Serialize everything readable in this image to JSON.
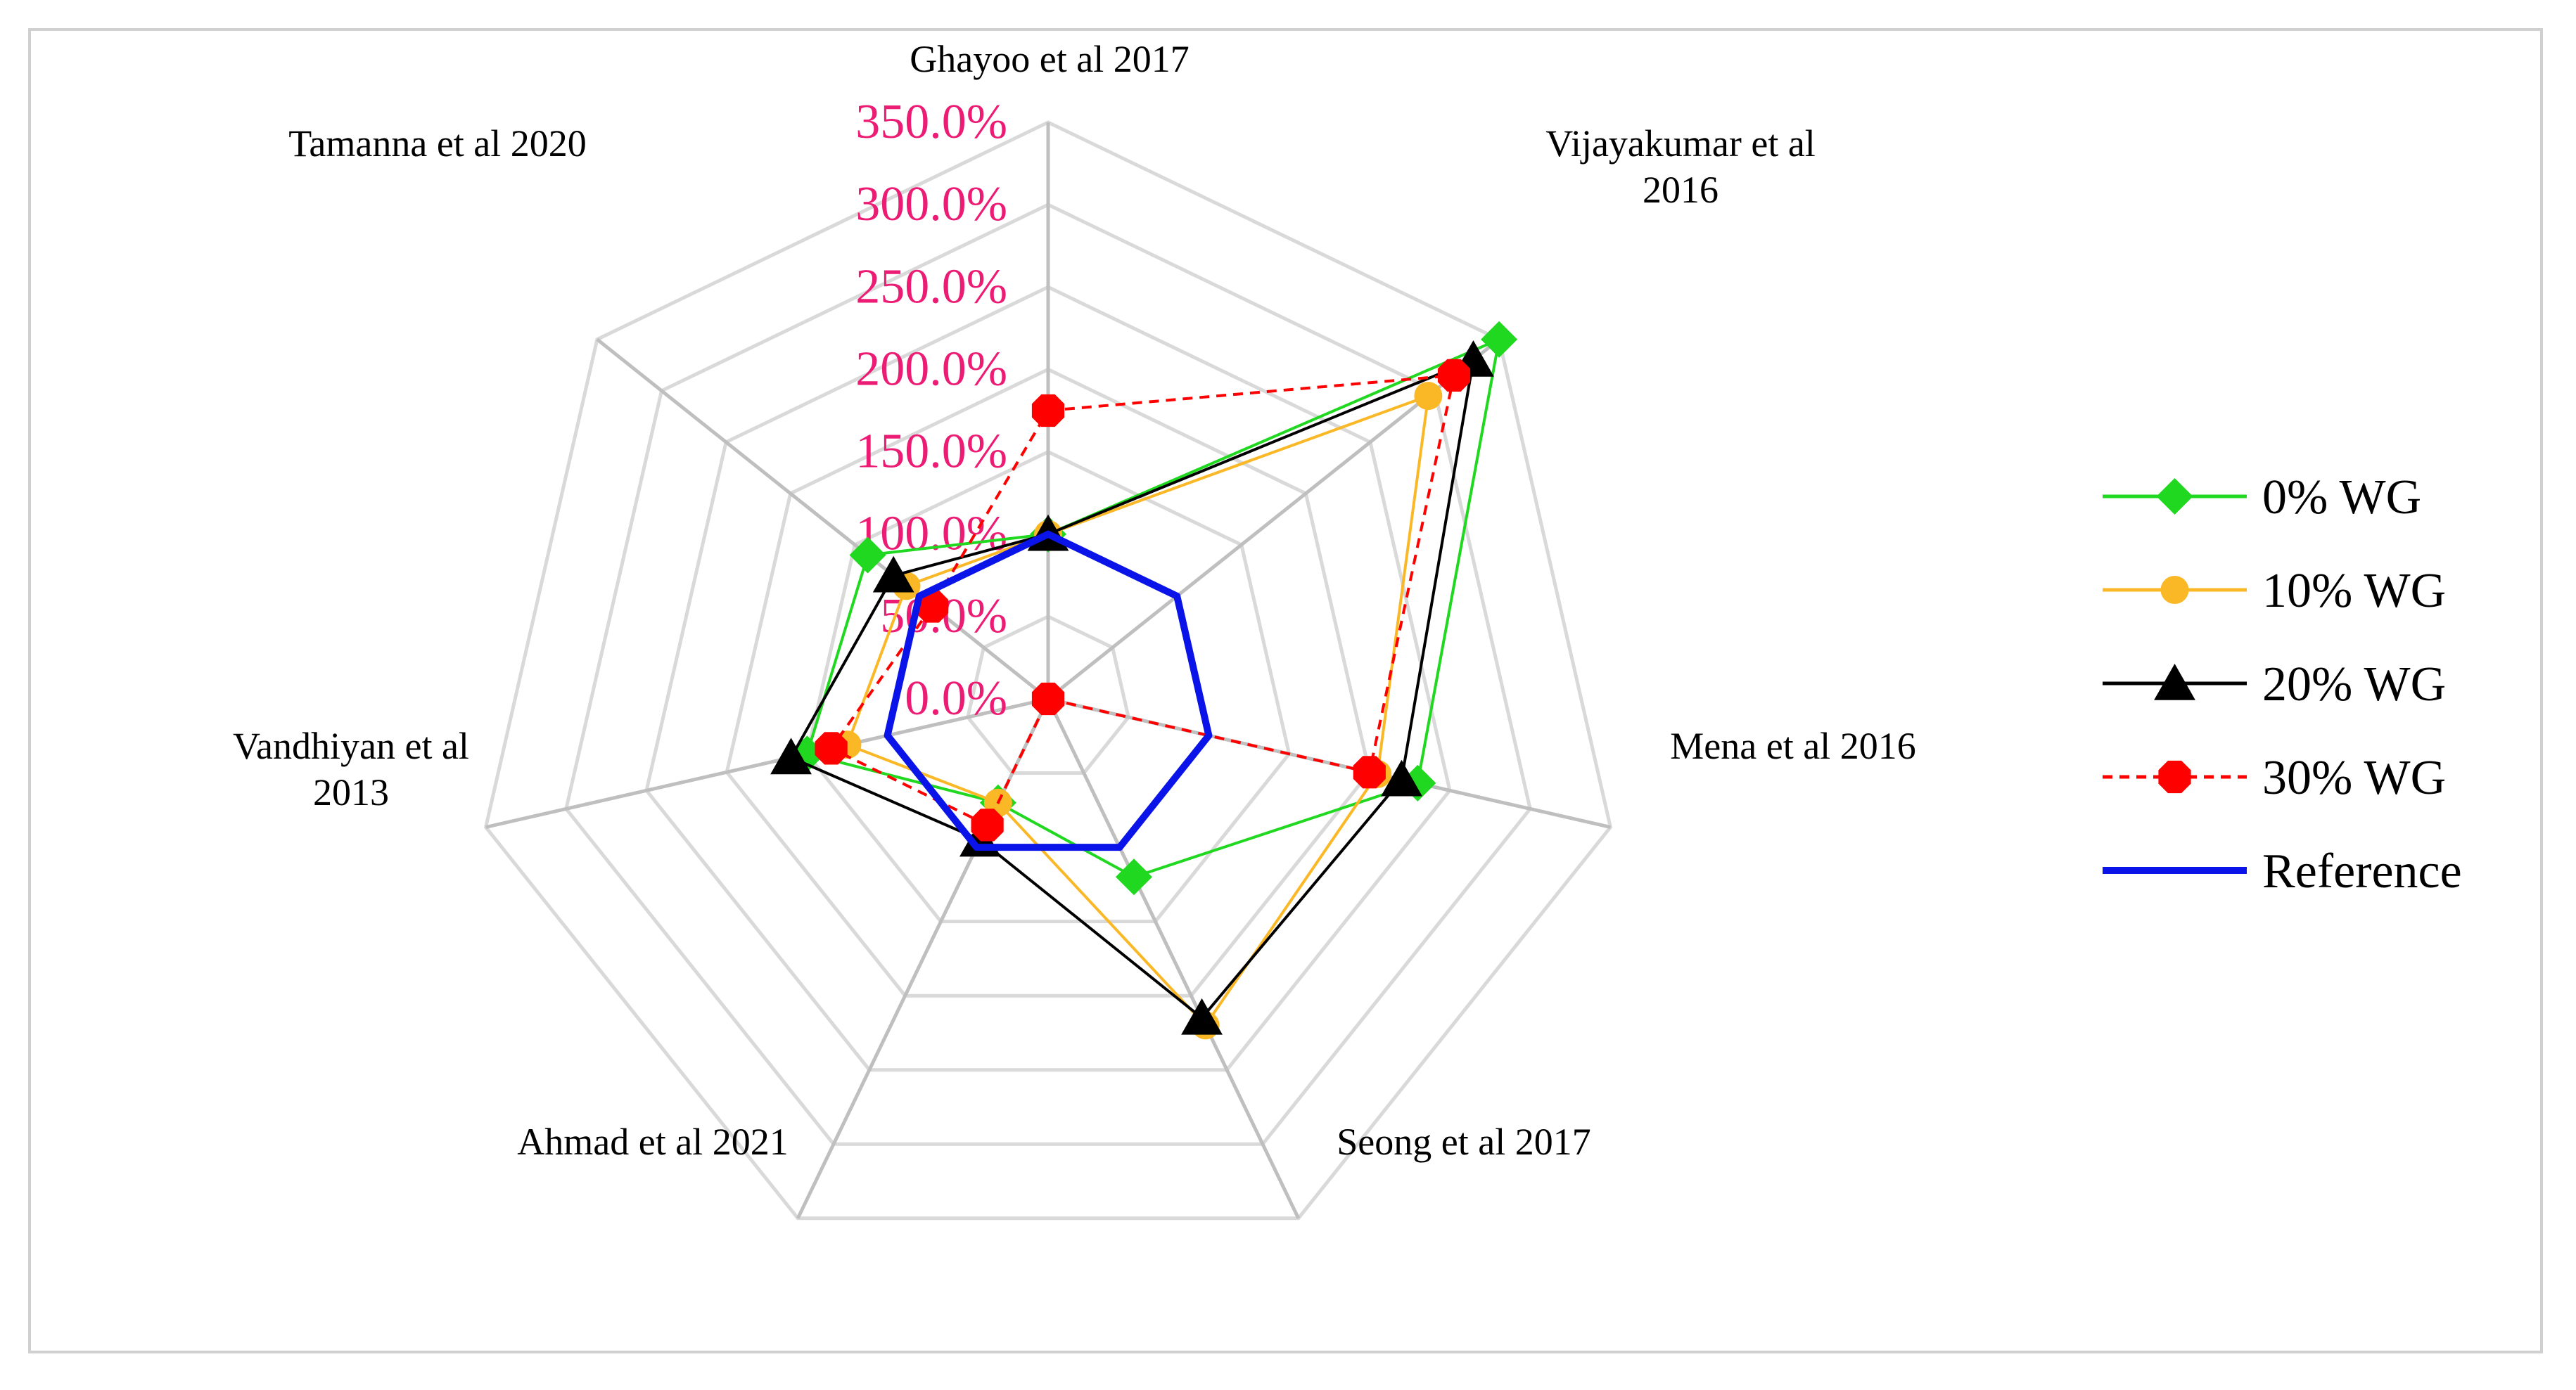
{
  "chart_data": {
    "type": "radar",
    "title": "",
    "categories": [
      "Ghayoo et al 2017",
      "Vijayakumar et al 2016",
      "Mena et al 2016",
      "Seong et al 2017",
      "Ahmad et al 2021",
      "Vandhiyan et al 2013",
      "Tamanna et al 2020"
    ],
    "category_lines": [
      [
        "Ghayoo et al 2017"
      ],
      [
        "Vijayakumar et al",
        "2016"
      ],
      [
        "Mena et al 2016"
      ],
      [
        "Seong et al 2017"
      ],
      [
        "Ahmad et al 2021"
      ],
      [
        "Vandhiyan et al",
        "2013"
      ],
      [
        "Tamanna et al 2020"
      ]
    ],
    "r_ticks": [
      "0.0%",
      "50.0%",
      "100.0%",
      "150.0%",
      "200.0%",
      "250.0%",
      "300.0%",
      "350.0%"
    ],
    "r_range": [
      0,
      350
    ],
    "grid": true,
    "legend_position": "right",
    "series": [
      {
        "name": "0% WG",
        "values": [
          100,
          350,
          230,
          120,
          70,
          150,
          140
        ],
        "color": "#1fd81f",
        "marker": "diamond",
        "dash": false
      },
      {
        "name": "10% WG",
        "values": [
          100,
          295,
          205,
          220,
          70,
          125,
          110
        ],
        "color": "#fbb826",
        "marker": "circle",
        "dash": false
      },
      {
        "name": "20% WG",
        "values": [
          100,
          330,
          220,
          215,
          95,
          160,
          120
        ],
        "color": "#000000",
        "marker": "triangle",
        "dash": false
      },
      {
        "name": "30% WG",
        "values": [
          175,
          315,
          200,
          0,
          85,
          135,
          90
        ],
        "color": "#ff0000",
        "marker": "octagon",
        "dash": true
      },
      {
        "name": "Reference",
        "values": [
          100,
          100,
          100,
          100,
          100,
          100,
          100
        ],
        "color": "#0a14e8",
        "marker": "none",
        "dash": false
      }
    ]
  }
}
